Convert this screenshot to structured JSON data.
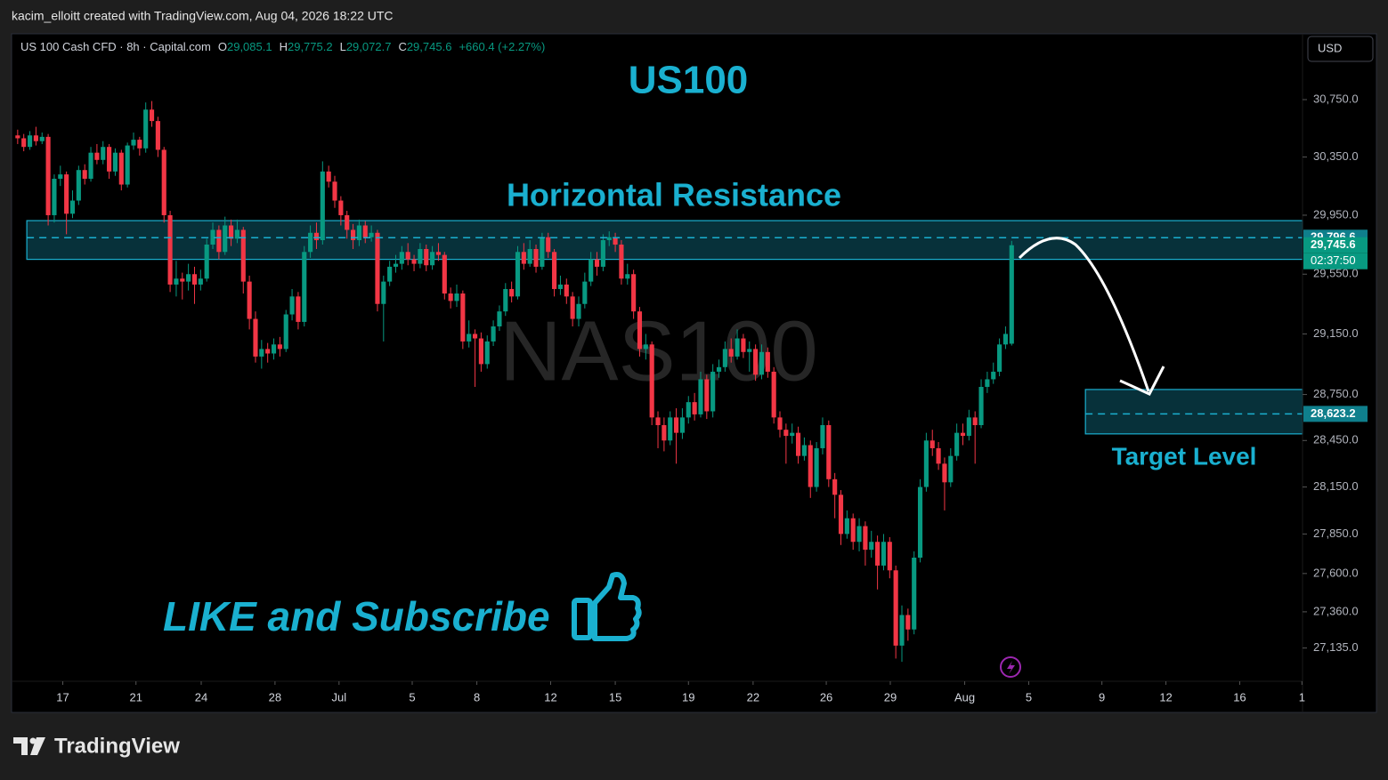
{
  "page": {
    "credit": "kacim_elloitt created with TradingView.com, Aug 04, 2026 18:22 UTC",
    "currency_button": "USD",
    "brand": "TradingView"
  },
  "chart_data": {
    "type": "candlestick",
    "header": {
      "symbol": "US 100 Cash CFD · 8h · Capital.com",
      "fields": [
        {
          "letter": "O",
          "value": "29,085.1"
        },
        {
          "letter": "H",
          "value": "29,775.2"
        },
        {
          "letter": "L",
          "value": "29,072.7"
        },
        {
          "letter": "C",
          "value": "29,745.6"
        }
      ],
      "change": "+660.4 (+2.27%)"
    },
    "title": "US100",
    "watermark": "NAS100",
    "annotations": {
      "resistance": "Horizontal Resistance",
      "target": "Target Level",
      "cta": "LIKE and Subscribe"
    },
    "up_color": "#089981",
    "down_color": "#f23645",
    "log_scale": true,
    "ylim": [
      26930,
      31215
    ],
    "yticks": [
      {
        "value": 30750,
        "label": "30,750.0"
      },
      {
        "value": 30350,
        "label": "30,350.0"
      },
      {
        "value": 29950,
        "label": "29,950.0"
      },
      {
        "value": 29550,
        "label": "29,550.0"
      },
      {
        "value": 29150,
        "label": "29,150.0"
      },
      {
        "value": 28750,
        "label": "28,750.0"
      },
      {
        "value": 28450,
        "label": "28,450.0"
      },
      {
        "value": 28150,
        "label": "28,150.0"
      },
      {
        "value": 27850,
        "label": "27,850.0"
      },
      {
        "value": 27600,
        "label": "27,600.0"
      },
      {
        "value": 27360,
        "label": "27,360.0"
      },
      {
        "value": 27135,
        "label": "27,135.0"
      }
    ],
    "xlim": [
      -1,
      210.7
    ],
    "xticks": [
      {
        "value": 7.4,
        "label": "17"
      },
      {
        "value": 19.4,
        "label": "21"
      },
      {
        "value": 30.1,
        "label": "24"
      },
      {
        "value": 42.2,
        "label": "28"
      },
      {
        "value": 52.7,
        "label": "Jul"
      },
      {
        "value": 64.7,
        "label": "5"
      },
      {
        "value": 75.3,
        "label": "8"
      },
      {
        "value": 87.4,
        "label": "12"
      },
      {
        "value": 98,
        "label": "15"
      },
      {
        "value": 110,
        "label": "19"
      },
      {
        "value": 120.6,
        "label": "22"
      },
      {
        "value": 132.6,
        "label": "26"
      },
      {
        "value": 143.1,
        "label": "29"
      },
      {
        "value": 155.3,
        "label": "Aug"
      },
      {
        "value": 165.8,
        "label": "5"
      },
      {
        "value": 177.8,
        "label": "9"
      },
      {
        "value": 188.3,
        "label": "12"
      },
      {
        "value": 200.4,
        "label": "16"
      },
      {
        "value": 210.6,
        "label": "1"
      }
    ],
    "zones": [
      {
        "from": 29650,
        "to": 29913,
        "line": 29796.6,
        "x_from": 1.5,
        "x_to": 210.7,
        "color": "#1ab0d0"
      },
      {
        "from": 28493,
        "to": 28783,
        "line": 28623.2,
        "x_from": 175.1,
        "x_to": 210.7,
        "color": "#1ab0d0"
      }
    ],
    "price_labels": [
      {
        "value": 29796.6,
        "label": "29,796.6",
        "color": "#0f7f8c"
      },
      {
        "value": 29745.6,
        "label": "29,745.6",
        "color": "#089981"
      },
      {
        "value": 28623.2,
        "label": "28,623.2",
        "color": "#0f7f8c"
      }
    ],
    "countdown": "02:37:50",
    "ohlc": [
      [
        30500,
        30540,
        30440,
        30480
      ],
      [
        30480,
        30510,
        30390,
        30420
      ],
      [
        30420,
        30530,
        30400,
        30500
      ],
      [
        30500,
        30560,
        30430,
        30460
      ],
      [
        30460,
        30520,
        30440,
        30490
      ],
      [
        30490,
        30510,
        29880,
        29950
      ],
      [
        29950,
        30230,
        29900,
        30200
      ],
      [
        30200,
        30290,
        30150,
        30230
      ],
      [
        30230,
        30250,
        29820,
        29960
      ],
      [
        29960,
        30120,
        29930,
        30050
      ],
      [
        30050,
        30290,
        30020,
        30260
      ],
      [
        30260,
        30300,
        30160,
        30200
      ],
      [
        30200,
        30420,
        30180,
        30380
      ],
      [
        30380,
        30440,
        30300,
        30330
      ],
      [
        30330,
        30460,
        30300,
        30420
      ],
      [
        30420,
        30440,
        30200,
        30250
      ],
      [
        30250,
        30410,
        30220,
        30380
      ],
      [
        30380,
        30400,
        30120,
        30160
      ],
      [
        30160,
        30450,
        30140,
        30430
      ],
      [
        30430,
        30520,
        30400,
        30470
      ],
      [
        30470,
        30490,
        30360,
        30410
      ],
      [
        30410,
        30730,
        30380,
        30680
      ],
      [
        30680,
        30740,
        30560,
        30600
      ],
      [
        30600,
        30630,
        30350,
        30400
      ],
      [
        30400,
        30420,
        29900,
        29950
      ],
      [
        29950,
        29980,
        29430,
        29480
      ],
      [
        29480,
        29640,
        29400,
        29520
      ],
      [
        29520,
        29560,
        29380,
        29500
      ],
      [
        29500,
        29620,
        29440,
        29550
      ],
      [
        29550,
        29600,
        29350,
        29480
      ],
      [
        29480,
        29580,
        29440,
        29520
      ],
      [
        29520,
        29790,
        29500,
        29750
      ],
      [
        29750,
        29900,
        29720,
        29850
      ],
      [
        29850,
        29880,
        29650,
        29700
      ],
      [
        29700,
        29940,
        29680,
        29880
      ],
      [
        29880,
        29920,
        29740,
        29790
      ],
      [
        29790,
        29920,
        29760,
        29850
      ],
      [
        29850,
        29870,
        29420,
        29500
      ],
      [
        29500,
        29540,
        29180,
        29250
      ],
      [
        29250,
        29300,
        28960,
        29000
      ],
      [
        29000,
        29110,
        28920,
        29050
      ],
      [
        29050,
        29090,
        28960,
        29020
      ],
      [
        29020,
        29120,
        28980,
        29080
      ],
      [
        29080,
        29130,
        29000,
        29050
      ],
      [
        29050,
        29310,
        29030,
        29280
      ],
      [
        29280,
        29450,
        29240,
        29400
      ],
      [
        29400,
        29430,
        29180,
        29230
      ],
      [
        29230,
        29740,
        29200,
        29700
      ],
      [
        29700,
        29880,
        29660,
        29830
      ],
      [
        29830,
        29900,
        29720,
        29780
      ],
      [
        29780,
        30320,
        29750,
        30250
      ],
      [
        30250,
        30290,
        30140,
        30180
      ],
      [
        30180,
        30220,
        30000,
        30050
      ],
      [
        30050,
        30080,
        29880,
        29950
      ],
      [
        29950,
        29980,
        29790,
        29850
      ],
      [
        29850,
        29890,
        29720,
        29780
      ],
      [
        29780,
        29920,
        29740,
        29880
      ],
      [
        29880,
        29910,
        29760,
        29800
      ],
      [
        29800,
        29880,
        29770,
        29830
      ],
      [
        29830,
        29850,
        29300,
        29350
      ],
      [
        29350,
        29540,
        29100,
        29500
      ],
      [
        29500,
        29640,
        29470,
        29600
      ],
      [
        29600,
        29680,
        29560,
        29620
      ],
      [
        29620,
        29740,
        29580,
        29700
      ],
      [
        29700,
        29760,
        29610,
        29650
      ],
      [
        29650,
        29680,
        29570,
        29620
      ],
      [
        29620,
        29760,
        29590,
        29720
      ],
      [
        29720,
        29750,
        29570,
        29610
      ],
      [
        29610,
        29740,
        29580,
        29700
      ],
      [
        29700,
        29760,
        29640,
        29680
      ],
      [
        29680,
        29700,
        29380,
        29420
      ],
      [
        29420,
        29460,
        29320,
        29370
      ],
      [
        29370,
        29480,
        29330,
        29420
      ],
      [
        29420,
        29440,
        29050,
        29100
      ],
      [
        29100,
        29240,
        29060,
        29150
      ],
      [
        29150,
        29180,
        28800,
        29120
      ],
      [
        29120,
        29160,
        28900,
        28950
      ],
      [
        28950,
        29140,
        28920,
        29100
      ],
      [
        29100,
        29240,
        29070,
        29200
      ],
      [
        29200,
        29340,
        29170,
        29300
      ],
      [
        29300,
        29490,
        29270,
        29450
      ],
      [
        29450,
        29500,
        29360,
        29400
      ],
      [
        29400,
        29740,
        29380,
        29700
      ],
      [
        29700,
        29760,
        29580,
        29620
      ],
      [
        29620,
        29780,
        29600,
        29720
      ],
      [
        29720,
        29750,
        29560,
        29600
      ],
      [
        29600,
        29830,
        29580,
        29800
      ],
      [
        29800,
        29830,
        29660,
        29700
      ],
      [
        29700,
        29720,
        29400,
        29450
      ],
      [
        29450,
        29540,
        29410,
        29480
      ],
      [
        29480,
        29520,
        29350,
        29400
      ],
      [
        29400,
        29430,
        29200,
        29250
      ],
      [
        29250,
        29400,
        29200,
        29350
      ],
      [
        29350,
        29560,
        29320,
        29500
      ],
      [
        29500,
        29700,
        29470,
        29650
      ],
      [
        29650,
        29700,
        29540,
        29600
      ],
      [
        29600,
        29820,
        29570,
        29780
      ],
      [
        29780,
        29840,
        29740,
        29800
      ],
      [
        29800,
        29830,
        29700,
        29750
      ],
      [
        29750,
        29780,
        29480,
        29520
      ],
      [
        29520,
        29620,
        29480,
        29550
      ],
      [
        29550,
        29580,
        29250,
        29300
      ],
      [
        29300,
        29330,
        29000,
        29050
      ],
      [
        29050,
        29150,
        28980,
        29080
      ],
      [
        29080,
        29100,
        28550,
        28600
      ],
      [
        28600,
        28640,
        28400,
        28550
      ],
      [
        28550,
        28600,
        28380,
        28450
      ],
      [
        28450,
        28640,
        28420,
        28600
      ],
      [
        28600,
        28660,
        28300,
        28500
      ],
      [
        28500,
        28660,
        28460,
        28600
      ],
      [
        28600,
        28740,
        28560,
        28700
      ],
      [
        28700,
        28760,
        28580,
        28620
      ],
      [
        28620,
        28900,
        28600,
        28850
      ],
      [
        28850,
        28880,
        28590,
        28640
      ],
      [
        28640,
        28950,
        28600,
        28900
      ],
      [
        28900,
        28980,
        28860,
        28930
      ],
      [
        28930,
        29100,
        28900,
        29050
      ],
      [
        29050,
        29120,
        28960,
        29000
      ],
      [
        29000,
        29180,
        28980,
        29120
      ],
      [
        29120,
        29150,
        28990,
        29030
      ],
      [
        29030,
        29100,
        28900,
        29050
      ],
      [
        29050,
        29080,
        28840,
        28880
      ],
      [
        28880,
        29080,
        28850,
        29030
      ],
      [
        29030,
        29060,
        28860,
        28900
      ],
      [
        28900,
        28930,
        28560,
        28600
      ],
      [
        28600,
        28640,
        28470,
        28520
      ],
      [
        28520,
        28560,
        28300,
        28480
      ],
      [
        28480,
        28560,
        28430,
        28500
      ],
      [
        28500,
        28540,
        28300,
        28350
      ],
      [
        28350,
        28470,
        28320,
        28420
      ],
      [
        28420,
        28450,
        28080,
        28150
      ],
      [
        28150,
        28440,
        28120,
        28400
      ],
      [
        28400,
        28600,
        28360,
        28550
      ],
      [
        28550,
        28580,
        28150,
        28200
      ],
      [
        28200,
        28240,
        27950,
        28100
      ],
      [
        28100,
        28130,
        27780,
        27850
      ],
      [
        27850,
        28000,
        27820,
        27950
      ],
      [
        27950,
        27980,
        27750,
        27800
      ],
      [
        27800,
        27950,
        27740,
        27900
      ],
      [
        27900,
        27930,
        27650,
        27750
      ],
      [
        27750,
        27870,
        27700,
        27800
      ],
      [
        27800,
        27840,
        27500,
        27650
      ],
      [
        27650,
        27850,
        27620,
        27800
      ],
      [
        27800,
        27830,
        27570,
        27620
      ],
      [
        27620,
        27650,
        27070,
        27150
      ],
      [
        27150,
        27400,
        27050,
        27340
      ],
      [
        27340,
        27380,
        27180,
        27250
      ],
      [
        27250,
        27740,
        27220,
        27700
      ],
      [
        27700,
        28200,
        27670,
        28150
      ],
      [
        28150,
        28500,
        28120,
        28450
      ],
      [
        28450,
        28520,
        28350,
        28400
      ],
      [
        28400,
        28440,
        28260,
        28300
      ],
      [
        28300,
        28340,
        28000,
        28180
      ],
      [
        28180,
        28400,
        28150,
        28350
      ],
      [
        28350,
        28560,
        28320,
        28500
      ],
      [
        28500,
        28560,
        28420,
        28480
      ],
      [
        28480,
        28650,
        28450,
        28600
      ],
      [
        28600,
        28640,
        28300,
        28550
      ],
      [
        28550,
        28850,
        28530,
        28800
      ],
      [
        28800,
        28900,
        28760,
        28850
      ],
      [
        28850,
        28960,
        28820,
        28900
      ],
      [
        28900,
        29120,
        28870,
        29080
      ],
      [
        29080,
        29200,
        29050,
        29150
      ],
      [
        29085.1,
        29775.2,
        29072.7,
        29745.6
      ]
    ]
  }
}
